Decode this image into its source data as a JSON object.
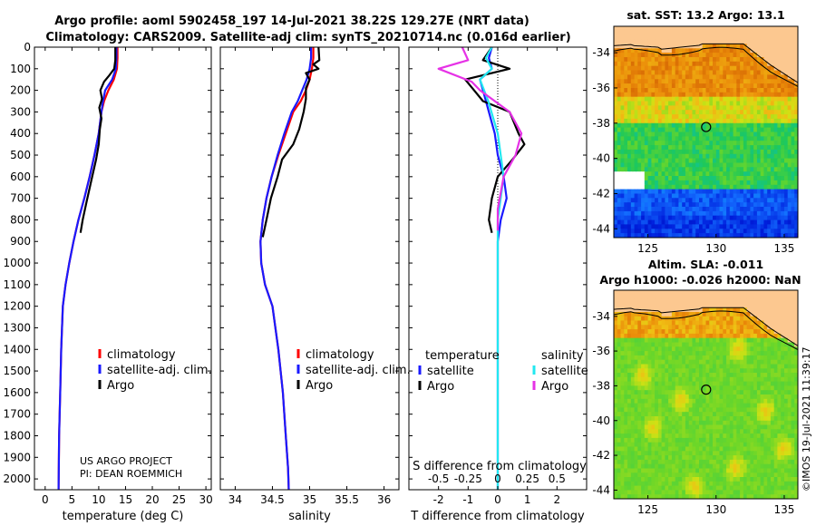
{
  "header": {
    "line1": "Argo profile: aoml 5902458_197 14-Jul-2021 38.22S 129.27E (NRT data)",
    "line2": "Climatology: CARS2009. Satellite-adj clim: synTS_20210714.nc (0.016d earlier)"
  },
  "colors": {
    "climatology": "#ff0000",
    "satellite": "#1a1aff",
    "argo": "#000000",
    "sat_s": "#22e8f0",
    "argo_s": "#e632e6"
  },
  "project": {
    "line1": "US ARGO PROJECT",
    "line2": "PI: DEAN ROEMMICH"
  },
  "watermark": "©IMOS 19-Jul-2021 11:39:17",
  "chart_data": [
    {
      "id": "temperature",
      "type": "line",
      "xlabel": "temperature (deg C)",
      "ylabel": "",
      "xlim": [
        -2,
        31
      ],
      "ylim": [
        2050,
        0
      ],
      "xticks": [
        0,
        5,
        10,
        15,
        20,
        25,
        30
      ],
      "yticks": [
        0,
        100,
        200,
        300,
        400,
        500,
        600,
        700,
        800,
        900,
        1000,
        1100,
        1200,
        1300,
        1400,
        1500,
        1600,
        1700,
        1800,
        1900,
        2000
      ],
      "legend": [
        "climatology",
        "satellite-adj. clim.",
        "Argo"
      ],
      "series": [
        {
          "name": "climatology",
          "color": "#ff0000",
          "x": [
            13.5,
            13.5,
            13.4,
            12.8,
            11.8,
            11.0,
            10.5,
            10.0,
            9.2,
            8.3,
            7.3,
            6.2,
            5.3,
            4.5,
            3.8,
            3.3,
            3.0,
            2.8,
            2.6,
            2.5
          ],
          "y": [
            0,
            50,
            100,
            150,
            200,
            250,
            300,
            400,
            500,
            600,
            700,
            800,
            900,
            1000,
            1100,
            1200,
            1400,
            1600,
            1800,
            2050
          ]
        },
        {
          "name": "satellite-adj. clim.",
          "color": "#1a1aff",
          "x": [
            13.3,
            13.3,
            13.2,
            12.5,
            11.2,
            10.8,
            10.5,
            10.0,
            9.2,
            8.3,
            7.3,
            6.2,
            5.3,
            4.5,
            3.8,
            3.3,
            3.0,
            2.8,
            2.6,
            2.5
          ],
          "y": [
            0,
            50,
            100,
            150,
            200,
            250,
            300,
            400,
            500,
            600,
            700,
            800,
            900,
            1000,
            1100,
            1200,
            1400,
            1600,
            1800,
            2050
          ]
        },
        {
          "name": "Argo",
          "color": "#000000",
          "x": [
            13.1,
            13.1,
            12.9,
            12.0,
            11.0,
            10.3,
            10.6,
            10.1,
            10.5,
            10.2,
            10.0,
            9.5,
            8.6,
            7.7,
            7.0,
            6.6
          ],
          "y": [
            0,
            60,
            100,
            130,
            160,
            200,
            240,
            280,
            330,
            380,
            450,
            520,
            620,
            720,
            800,
            860
          ]
        }
      ]
    },
    {
      "id": "salinity",
      "type": "line",
      "xlabel": "salinity",
      "xlim": [
        33.8,
        36.2
      ],
      "ylim": [
        2050,
        0
      ],
      "xticks": [
        34,
        34.5,
        35,
        35.5,
        36
      ],
      "xtick_labels": [
        "34",
        "34.5",
        "35",
        "35.5",
        "36"
      ],
      "legend": [
        "climatology",
        "satellite-adj. clim.",
        "Argo"
      ],
      "series": [
        {
          "name": "climatology",
          "color": "#ff0000",
          "x": [
            35.05,
            35.05,
            35.03,
            35.0,
            34.95,
            34.88,
            34.78,
            34.68,
            34.58,
            34.49,
            34.42,
            34.37,
            34.34,
            34.35,
            34.4,
            34.5,
            34.58,
            34.64,
            34.68,
            34.71,
            34.72
          ],
          "y": [
            0,
            50,
            100,
            150,
            200,
            250,
            300,
            400,
            500,
            600,
            700,
            800,
            900,
            1000,
            1100,
            1200,
            1400,
            1600,
            1800,
            1950,
            2050
          ]
        },
        {
          "name": "satellite-adj. clim.",
          "color": "#1a1aff",
          "x": [
            35.02,
            35.02,
            35.0,
            34.96,
            34.9,
            34.84,
            34.76,
            34.66,
            34.57,
            34.49,
            34.42,
            34.37,
            34.34,
            34.35,
            34.4,
            34.5,
            34.58,
            34.64,
            34.68,
            34.71,
            34.72
          ],
          "y": [
            0,
            50,
            100,
            150,
            200,
            250,
            300,
            400,
            500,
            600,
            700,
            800,
            900,
            1000,
            1100,
            1200,
            1400,
            1600,
            1800,
            1950,
            2050
          ]
        },
        {
          "name": "Argo",
          "color": "#000000",
          "x": [
            35.12,
            35.13,
            35.05,
            35.12,
            34.95,
            35.0,
            34.95,
            34.95,
            34.92,
            34.86,
            34.78,
            34.63,
            34.57,
            34.48,
            34.42,
            34.37
          ],
          "y": [
            0,
            60,
            80,
            100,
            120,
            150,
            190,
            240,
            300,
            380,
            450,
            520,
            600,
            700,
            800,
            880
          ]
        }
      ]
    },
    {
      "id": "difference",
      "type": "line",
      "xlabel": "T difference from climatology",
      "top_axis_label": "S difference from climatology",
      "xlim": [
        -3,
        3
      ],
      "ylim": [
        2050,
        0
      ],
      "xticks": [
        -2,
        -1,
        0,
        1,
        2
      ],
      "xtick_labels": [
        "-2",
        "-1",
        "0",
        "1",
        "2"
      ],
      "top_ticks": [
        -0.5,
        -0.25,
        0,
        0.25,
        0.5
      ],
      "top_tick_labels": [
        "-0.5",
        "-0.25",
        "0",
        "0.25",
        "0.5"
      ],
      "legend_t_title": "temperature",
      "legend_s_title": "salinity",
      "legend": [
        "satellite",
        "Argo",
        "satellite",
        "Argo"
      ],
      "series": [
        {
          "name": "temperature satellite",
          "color": "#1a1aff",
          "x": [
            -0.2,
            -0.3,
            -0.2,
            -0.6,
            -0.5,
            -0.3,
            -0.1,
            0.0,
            0.2,
            0.3,
            0.1,
            0.0,
            0.0,
            0.0,
            0.0
          ],
          "y": [
            0,
            50,
            100,
            150,
            200,
            300,
            400,
            500,
            600,
            700,
            800,
            900,
            1000,
            1100,
            2050
          ]
        },
        {
          "name": "temperature Argo",
          "color": "#000000",
          "x": [
            -0.2,
            -0.5,
            0.4,
            -1.1,
            -0.8,
            -0.5,
            0.4,
            0.7,
            0.9,
            0.5,
            0.0,
            -0.2,
            -0.3,
            -0.2
          ],
          "y": [
            0,
            60,
            100,
            150,
            200,
            250,
            300,
            400,
            450,
            520,
            600,
            700,
            800,
            860
          ]
        },
        {
          "name": "salinity satellite",
          "color": "#22e8f0",
          "x": [
            -0.05,
            -0.1,
            -0.05,
            -0.15,
            -0.08,
            0.0,
            0.05,
            0.0,
            0.0
          ],
          "y": [
            0,
            50,
            100,
            150,
            250,
            400,
            600,
            800,
            2050
          ]
        },
        {
          "name": "salinity Argo",
          "color": "#e632e6",
          "x": [
            -0.3,
            -0.25,
            -0.5,
            -0.22,
            -0.15,
            0.1,
            0.2,
            0.15,
            0.05,
            0.0,
            0.0
          ],
          "y": [
            0,
            60,
            100,
            160,
            200,
            300,
            400,
            500,
            600,
            750,
            850
          ]
        }
      ]
    },
    {
      "id": "sst_map",
      "type": "heatmap",
      "title": "sat. SST: 13.2 Argo: 13.1",
      "xlim": [
        122.5,
        136
      ],
      "ylim": [
        -44.5,
        -32.5
      ],
      "xticks": [
        125,
        130,
        135
      ],
      "yticks": [
        -34,
        -36,
        -38,
        -40,
        -42,
        -44
      ],
      "marker": {
        "lon": 129.27,
        "lat": -38.22
      }
    },
    {
      "id": "sla_map",
      "type": "heatmap",
      "title_line1": "Altim. SLA: -0.011",
      "title_line2": "Argo h1000: -0.026 h2000: NaN",
      "xlim": [
        122.5,
        136
      ],
      "ylim": [
        -44.5,
        -32.5
      ],
      "xticks": [
        125,
        130,
        135
      ],
      "yticks": [
        -34,
        -36,
        -38,
        -40,
        -42,
        -44
      ],
      "marker": {
        "lon": 129.27,
        "lat": -38.22
      }
    }
  ]
}
